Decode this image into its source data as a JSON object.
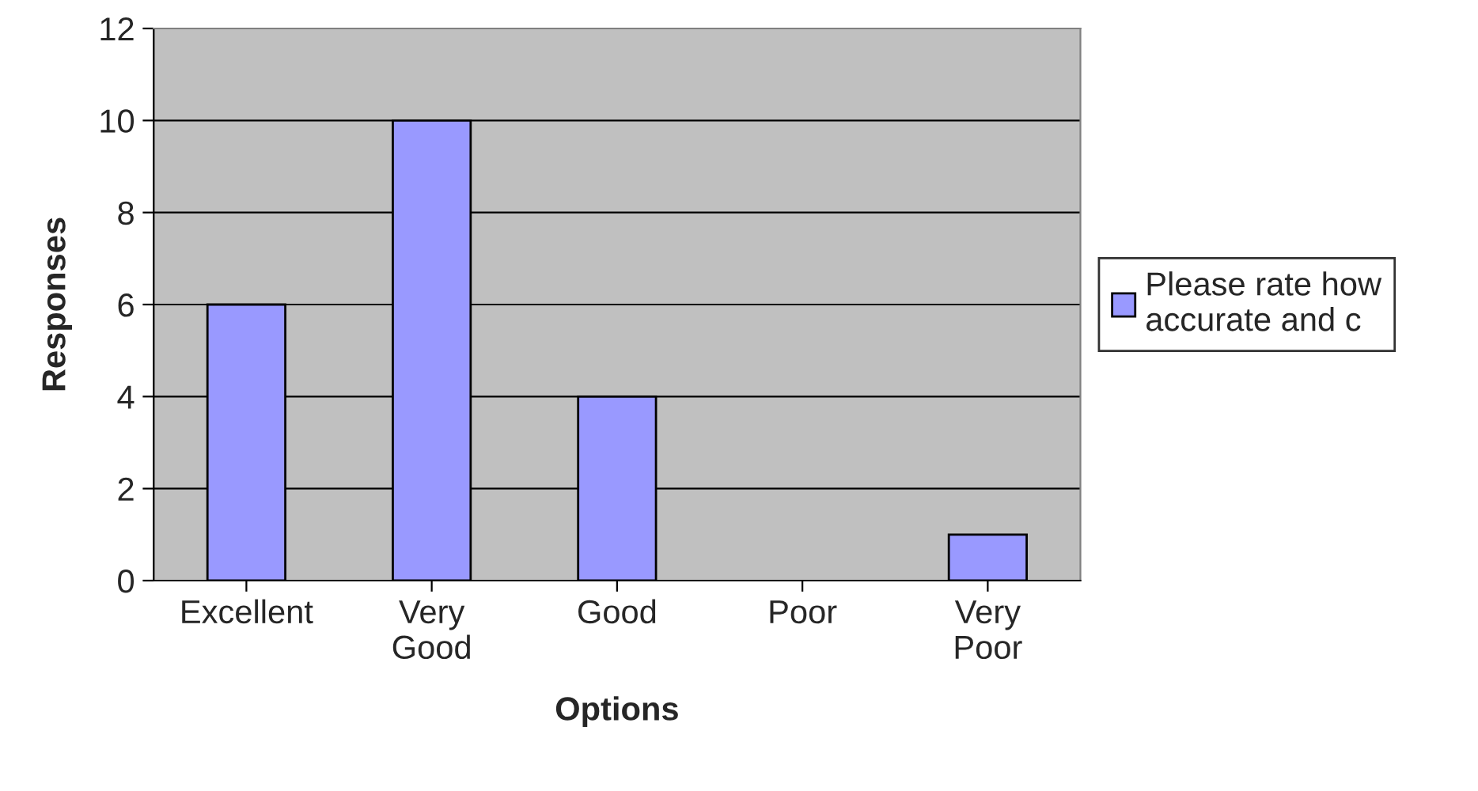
{
  "chart_data": {
    "type": "bar",
    "xlabel": "Options",
    "ylabel": "Responses",
    "categories": [
      "Excellent",
      "Very\nGood",
      "Good",
      "Poor",
      "Very\nPoor"
    ],
    "series": [
      {
        "name": "Please rate how\naccurate and c",
        "color": "#9999ff",
        "values": [
          6,
          10,
          4,
          0,
          1
        ]
      }
    ],
    "ylim": [
      0,
      12
    ],
    "yticks": [
      0,
      2,
      4,
      6,
      8,
      10,
      12
    ],
    "grid": "y",
    "legend": "right"
  }
}
